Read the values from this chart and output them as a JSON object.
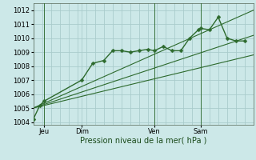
{
  "background_color": "#cce8e8",
  "grid_color": "#aacccc",
  "line_color": "#2d6a2d",
  "marker_color": "#2d6a2d",
  "xlabel": "Pression niveau de la mer( hPa )",
  "ylim": [
    1003.8,
    1012.5
  ],
  "yticks": [
    1004,
    1005,
    1006,
    1007,
    1008,
    1009,
    1010,
    1011,
    1012
  ],
  "xlim": [
    0,
    100
  ],
  "day_labels": [
    "Jeu",
    "Dim",
    "Ven",
    "Sam"
  ],
  "day_positions": [
    5,
    22,
    55,
    76
  ],
  "vline_positions": [
    5,
    55,
    76
  ],
  "series_marker": {
    "x": [
      0,
      3,
      5,
      22,
      27,
      32,
      36,
      40,
      44,
      48,
      52,
      55,
      59,
      63,
      67,
      71,
      75,
      76,
      80,
      84,
      88,
      92,
      96
    ],
    "y": [
      1004.2,
      1005.2,
      1005.5,
      1007.0,
      1008.2,
      1008.4,
      1009.1,
      1009.1,
      1009.0,
      1009.1,
      1009.2,
      1009.1,
      1009.4,
      1009.1,
      1009.1,
      1010.0,
      1010.6,
      1010.7,
      1010.6,
      1011.5,
      1010.0,
      1009.8,
      1009.8
    ],
    "linewidth": 1.0,
    "markersize": 2.5
  },
  "trend_lines": [
    {
      "x": [
        0,
        100
      ],
      "y": [
        1005.0,
        1012.0
      ]
    },
    {
      "x": [
        0,
        100
      ],
      "y": [
        1005.0,
        1010.2
      ]
    },
    {
      "x": [
        0,
        100
      ],
      "y": [
        1005.0,
        1008.8
      ]
    }
  ]
}
